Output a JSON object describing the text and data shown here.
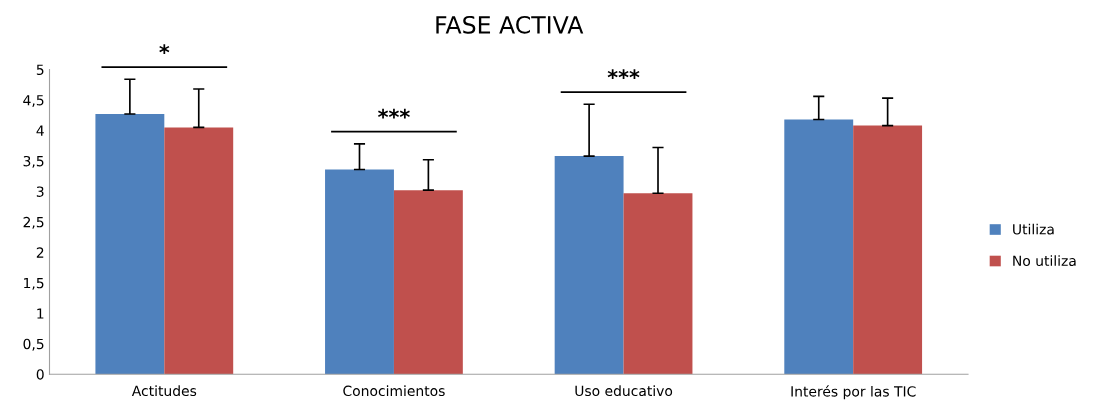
{
  "chart_data": {
    "type": "bar",
    "title": "FASE ACTIVA",
    "categories": [
      "Actitudes",
      "Conocimientos",
      "Uso educativo",
      "Interés por las TIC"
    ],
    "series": [
      {
        "name": "Utiliza",
        "color": "#4f81bd",
        "values": [
          4.27,
          3.36,
          3.58,
          4.18
        ],
        "errors": [
          0.57,
          0.42,
          0.85,
          0.38
        ]
      },
      {
        "name": "No utiliza",
        "color": "#c0504d",
        "values": [
          4.05,
          3.02,
          2.97,
          4.08
        ],
        "errors": [
          0.63,
          0.5,
          0.75,
          0.45
        ]
      }
    ],
    "ylim": [
      0,
      5
    ],
    "yticks": [
      0,
      {
        "value": 0.5,
        "label": "0,5"
      },
      1,
      {
        "value": 1.5,
        "label": "1,5"
      },
      2,
      {
        "value": 2.5,
        "label": "2,5"
      },
      3,
      {
        "value": 3.5,
        "label": "3,5"
      },
      4,
      {
        "value": 4.5,
        "label": "4,5"
      },
      5
    ],
    "annotations": [
      "*",
      "***",
      "***"
    ],
    "grid": false,
    "legend": "right"
  }
}
